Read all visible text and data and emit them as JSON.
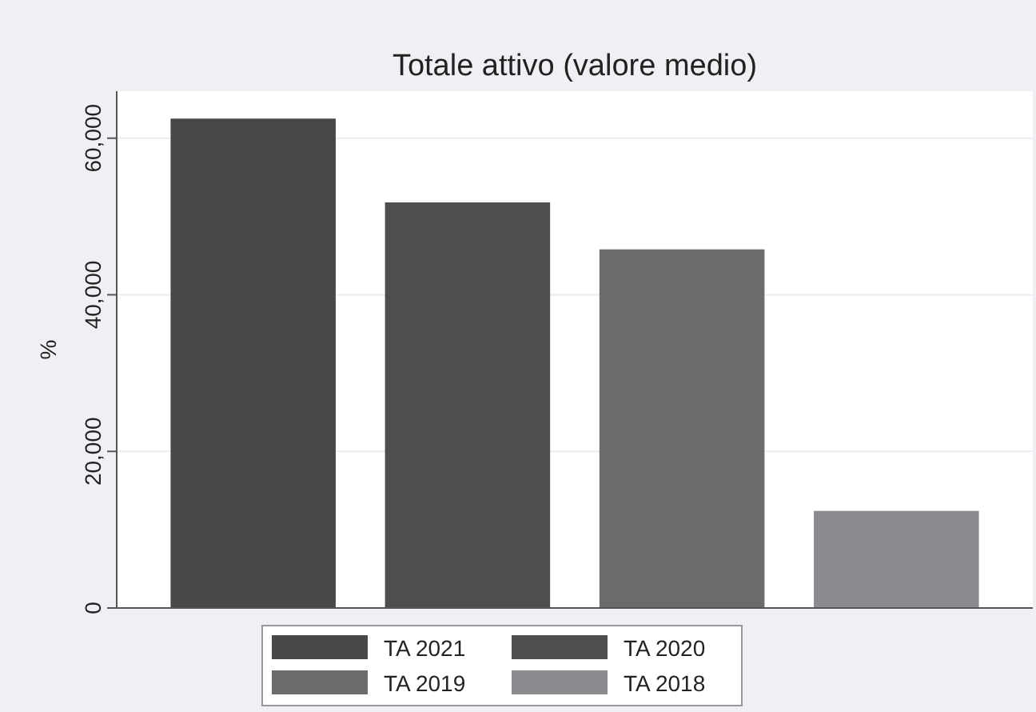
{
  "chart_data": {
    "type": "bar",
    "title": "Totale attivo (valore medio)",
    "ylabel": "%",
    "categories": [
      null
    ],
    "series": [
      {
        "name": "TA 2021",
        "color": "#47484a",
        "values": [
          62500
        ]
      },
      {
        "name": "TA 2020",
        "color": "#4d4e50",
        "values": [
          51800
        ]
      },
      {
        "name": "TA 2019",
        "color": "#6b6b6d",
        "values": [
          45800
        ]
      },
      {
        "name": "TA 2018",
        "color": "#8b8c8f",
        "values": [
          12400
        ]
      }
    ],
    "ylim": [
      0,
      66000
    ],
    "yticks": [
      {
        "value": 0,
        "label": "0"
      },
      {
        "value": 20000,
        "label": "20,000"
      },
      {
        "value": 40000,
        "label": "40,000"
      },
      {
        "value": 60000,
        "label": "60,000"
      }
    ],
    "grid": "y",
    "legend": "bottom"
  }
}
